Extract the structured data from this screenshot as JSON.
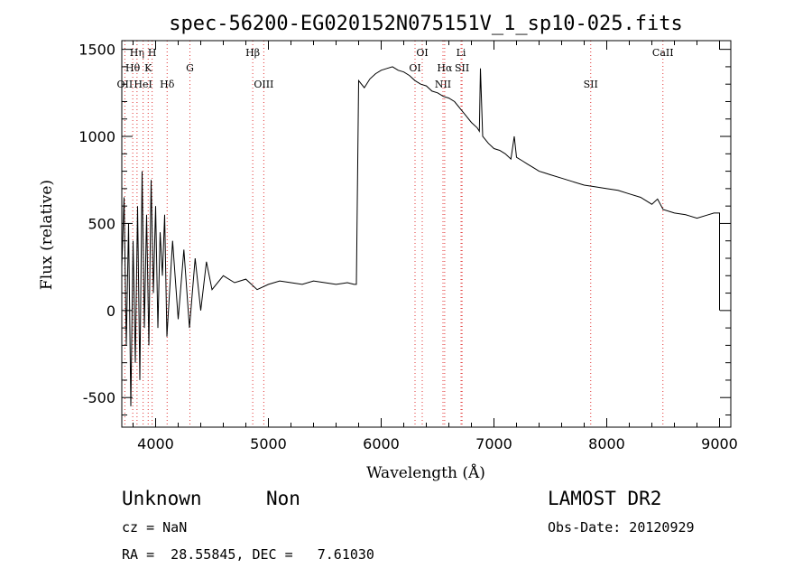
{
  "chart_data": {
    "type": "line",
    "title": "spec-56200-EG020152N075151V_1_sp10-025.fits",
    "xlabel": "Wavelength (Å)",
    "ylabel": "Flux (relative)",
    "xlim": [
      3700,
      9100
    ],
    "ylim": [
      -670,
      1550
    ],
    "x_ticks": [
      4000,
      5000,
      6000,
      7000,
      8000,
      9000
    ],
    "y_ticks": [
      -500,
      0,
      500,
      1000,
      1500
    ],
    "grid": false,
    "series": [
      {
        "name": "",
        "x": [
          3700,
          3720,
          3740,
          3760,
          3780,
          3800,
          3820,
          3840,
          3860,
          3880,
          3900,
          3920,
          3940,
          3960,
          3980,
          4000,
          4020,
          4040,
          4060,
          4080,
          4100,
          4150,
          4200,
          4250,
          4300,
          4350,
          4400,
          4450,
          4500,
          4600,
          4700,
          4800,
          4900,
          5000,
          5100,
          5200,
          5300,
          5400,
          5500,
          5600,
          5700,
          5760,
          5780,
          5800,
          5850,
          5900,
          5950,
          6000,
          6050,
          6100,
          6150,
          6200,
          6250,
          6300,
          6350,
          6400,
          6450,
          6500,
          6550,
          6600,
          6650,
          6700,
          6750,
          6800,
          6850,
          6870,
          6880,
          6900,
          6950,
          7000,
          7050,
          7100,
          7150,
          7180,
          7200,
          7250,
          7300,
          7350,
          7400,
          7450,
          7500,
          7600,
          7700,
          7800,
          7900,
          8000,
          8100,
          8200,
          8300,
          8400,
          8450,
          8500,
          8600,
          8700,
          8800,
          8900,
          8950,
          9000,
          9000
        ],
        "values": [
          250,
          650,
          -200,
          500,
          -550,
          400,
          -300,
          600,
          -400,
          800,
          -100,
          550,
          -200,
          750,
          100,
          600,
          -100,
          450,
          200,
          550,
          -150,
          400,
          -50,
          350,
          -100,
          300,
          0,
          280,
          120,
          200,
          160,
          180,
          120,
          150,
          170,
          160,
          150,
          170,
          160,
          150,
          160,
          150,
          150,
          1320,
          1280,
          1330,
          1360,
          1380,
          1390,
          1400,
          1380,
          1370,
          1350,
          1320,
          1300,
          1290,
          1260,
          1250,
          1230,
          1220,
          1200,
          1160,
          1120,
          1080,
          1050,
          1030,
          1390,
          1000,
          960,
          930,
          920,
          900,
          870,
          1000,
          880,
          860,
          840,
          820,
          800,
          790,
          780,
          760,
          740,
          720,
          710,
          700,
          690,
          670,
          650,
          610,
          640,
          580,
          560,
          550,
          530,
          550,
          560,
          560,
          0
        ]
      }
    ],
    "lines": [
      {
        "label": "OII",
        "x": 3727,
        "row": 3
      },
      {
        "label": "Hθ",
        "x": 3797,
        "row": 2
      },
      {
        "label": "Hη",
        "x": 3835,
        "row": 1
      },
      {
        "label": "HeI",
        "x": 3889,
        "row": 3
      },
      {
        "label": "K",
        "x": 3934,
        "row": 2
      },
      {
        "label": "H",
        "x": 3969,
        "row": 1
      },
      {
        "label": "Hδ",
        "x": 4102,
        "row": 3
      },
      {
        "label": "G",
        "x": 4304,
        "row": 2
      },
      {
        "label": "Hβ",
        "x": 4861,
        "row": 1
      },
      {
        "label": "OIII",
        "x": 4959,
        "row": 3
      },
      {
        "label": "OI",
        "x": 6300,
        "row": 2
      },
      {
        "label": "OI",
        "x": 6364,
        "row": 1
      },
      {
        "label": "NII",
        "x": 6548,
        "row": 3
      },
      {
        "label": "Hα",
        "x": 6563,
        "row": 2
      },
      {
        "label": "Li",
        "x": 6708,
        "row": 1
      },
      {
        "label": "SII",
        "x": 6717,
        "row": 2
      },
      {
        "label": "SII",
        "x": 7858,
        "row": 3
      },
      {
        "label": "CaII",
        "x": 8498,
        "row": 1
      }
    ]
  },
  "info": {
    "class": "Unknown",
    "subclass": "Non",
    "survey": "LAMOST DR2",
    "cz": "cz = NaN",
    "obs_date": "Obs-Date: 20120929",
    "coords": "RA =  28.55845, DEC =   7.61030"
  }
}
